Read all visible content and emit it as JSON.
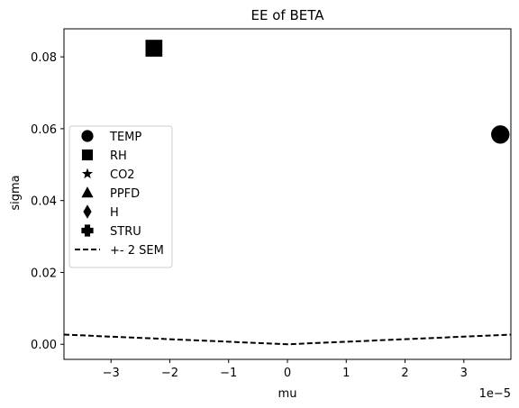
{
  "chart_data": {
    "type": "scatter",
    "title": "EE of BETA",
    "xlabel": "mu",
    "ylabel": "sigma",
    "x_offset_label": "1e−5",
    "xlim": [
      -3.8e-05,
      3.8e-05
    ],
    "ylim": [
      -0.0042,
      0.0878
    ],
    "x_ticks": [
      -3e-05,
      -2e-05,
      -1e-05,
      0,
      1e-05,
      2e-05,
      3e-05
    ],
    "x_tick_labels": [
      "−3",
      "−2",
      "−1",
      "0",
      "1",
      "2",
      "3"
    ],
    "y_ticks": [
      0.0,
      0.02,
      0.04,
      0.06,
      0.08
    ],
    "y_tick_labels": [
      "0.00",
      "0.02",
      "0.04",
      "0.06",
      "0.08"
    ],
    "grid": false,
    "legend_position": "center-left",
    "series": [
      {
        "name": "TEMP",
        "marker": "circle",
        "color": "#000000",
        "points": [
          [
            3.62e-05,
            0.0584
          ]
        ]
      },
      {
        "name": "RH",
        "marker": "square",
        "color": "#000000",
        "points": [
          [
            -2.27e-05,
            0.0824
          ]
        ]
      },
      {
        "name": "CO2",
        "marker": "star",
        "color": "#000000",
        "points": []
      },
      {
        "name": "PPFD",
        "marker": "triangle",
        "color": "#000000",
        "points": []
      },
      {
        "name": "H",
        "marker": "diamond",
        "color": "#000000",
        "points": []
      },
      {
        "name": "STRU",
        "marker": "plus",
        "color": "#000000",
        "points": []
      }
    ],
    "sem_line": {
      "name": "+- 2 SEM",
      "style": "dashed",
      "color": "#000000",
      "points": [
        [
          -3.8e-05,
          0.00269
        ],
        [
          0,
          0.0
        ],
        [
          3.8e-05,
          0.00269
        ]
      ]
    }
  }
}
